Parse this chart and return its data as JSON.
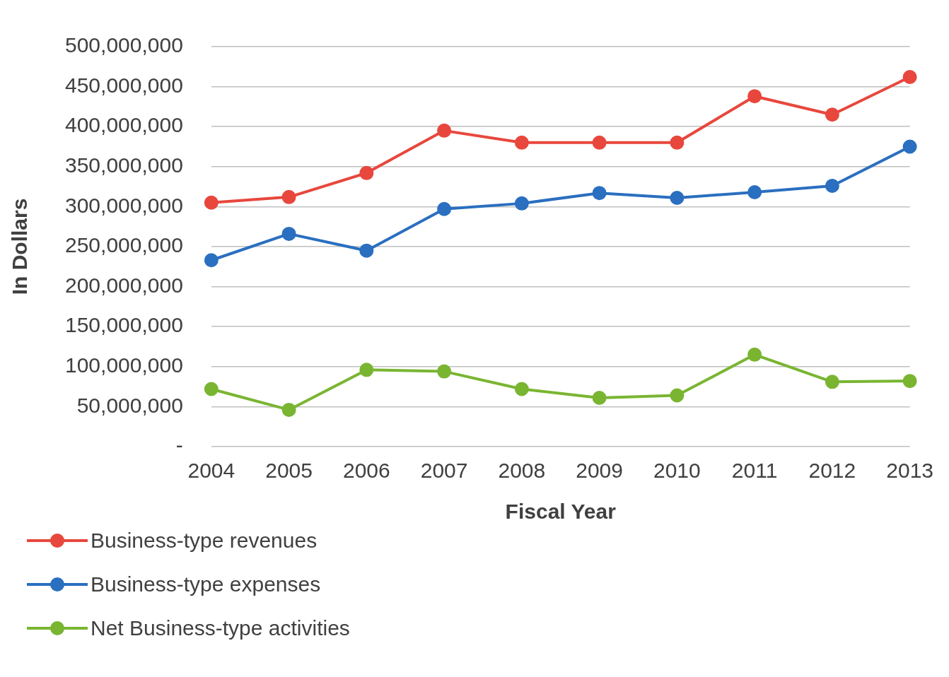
{
  "chart_data": {
    "type": "line",
    "xlabel": "Fiscal Year",
    "ylabel": "In Dollars",
    "categories": [
      "2004",
      "2005",
      "2006",
      "2007",
      "2008",
      "2009",
      "2010",
      "2011",
      "2012",
      "2013"
    ],
    "series": [
      {
        "name": "Business-type revenues",
        "color": "#e8473d",
        "values": [
          305000000,
          312000000,
          342000000,
          395000000,
          380000000,
          380000000,
          380000000,
          438000000,
          415000000,
          462000000
        ]
      },
      {
        "name": "Business-type expenses",
        "color": "#2a6fc0",
        "values": [
          233000000,
          266000000,
          245000000,
          297000000,
          304000000,
          317000000,
          311000000,
          318000000,
          326000000,
          375000000
        ]
      },
      {
        "name": "Net Business-type activities",
        "color": "#7ab532",
        "values": [
          72000000,
          46000000,
          96000000,
          94000000,
          72000000,
          61000000,
          64000000,
          115000000,
          81000000,
          82000000
        ]
      }
    ],
    "ylim": [
      0,
      500000000
    ],
    "yticks": [
      {
        "value": 0,
        "label": "-"
      },
      {
        "value": 50000000,
        "label": "50,000,000"
      },
      {
        "value": 100000000,
        "label": "100,000,000"
      },
      {
        "value": 150000000,
        "label": "150,000,000"
      },
      {
        "value": 200000000,
        "label": "200,000,000"
      },
      {
        "value": 250000000,
        "label": "250,000,000"
      },
      {
        "value": 300000000,
        "label": "300,000,000"
      },
      {
        "value": 350000000,
        "label": "350,000,000"
      },
      {
        "value": 400000000,
        "label": "400,000,000"
      },
      {
        "value": 450000000,
        "label": "450,000,000"
      },
      {
        "value": 500000000,
        "label": "500,000,000"
      }
    ],
    "grid": "y",
    "legend": "bottom left",
    "marker": "circle",
    "line_style": "solid"
  }
}
